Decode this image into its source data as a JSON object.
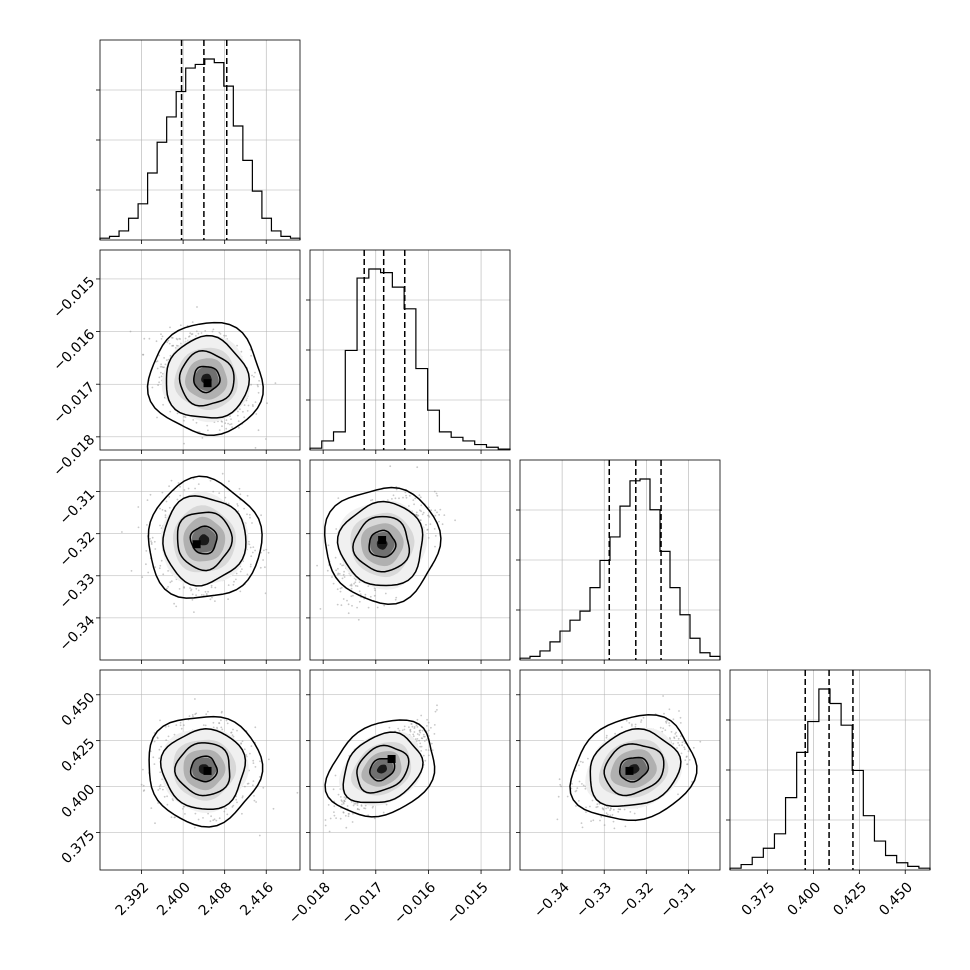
{
  "chart_data": {
    "type": "corner",
    "title": "",
    "parameters": [
      {
        "range": [
          2.384,
          2.4225
        ],
        "ticks": [
          2.392,
          2.4,
          2.408,
          2.416
        ],
        "tick_labels": [
          "2.392",
          "2.400",
          "2.408",
          "2.416"
        ],
        "quantiles": [
          2.3997,
          2.404,
          2.4084
        ],
        "median": 2.4042,
        "hist_heights": [
          0.01,
          0.02,
          0.05,
          0.12,
          0.2,
          0.37,
          0.54,
          0.68,
          0.82,
          0.95,
          0.97,
          1.0,
          0.98,
          0.85,
          0.63,
          0.44,
          0.27,
          0.12,
          0.05,
          0.02,
          0.01
        ]
      },
      {
        "range": [
          -0.01825,
          -0.01445
        ],
        "ticks": [
          -0.018,
          -0.017,
          -0.016,
          -0.015
        ],
        "tick_labels": [
          "−0.018",
          "−0.017",
          "−0.016",
          "−0.015"
        ],
        "quantiles": [
          -0.01722,
          -0.01685,
          -0.01645
        ],
        "median": -0.0169,
        "hist_heights": [
          0.01,
          0.05,
          0.1,
          0.55,
          0.95,
          1.0,
          0.98,
          0.9,
          0.78,
          0.45,
          0.22,
          0.1,
          0.07,
          0.05,
          0.03,
          0.015,
          0.005
        ]
      },
      {
        "range": [
          -0.35,
          -0.3025
        ],
        "ticks": [
          -0.34,
          -0.33,
          -0.32,
          -0.31
        ],
        "tick_labels": [
          "−0.34",
          "−0.33",
          "−0.32",
          "−0.31"
        ],
        "quantiles": [
          -0.3288,
          -0.3225,
          -0.3165
        ],
        "median": -0.3225,
        "hist_heights": [
          0.01,
          0.02,
          0.05,
          0.1,
          0.16,
          0.22,
          0.27,
          0.4,
          0.55,
          0.68,
          0.85,
          0.99,
          1.0,
          0.83,
          0.6,
          0.4,
          0.25,
          0.12,
          0.04,
          0.02
        ]
      },
      {
        "range": [
          0.3545,
          0.4635
        ],
        "ticks": [
          0.375,
          0.4,
          0.425,
          0.45
        ],
        "tick_labels": [
          "0.375",
          "0.400",
          "0.425",
          "0.450"
        ],
        "quantiles": [
          0.3955,
          0.4085,
          0.4215
        ],
        "median": 0.4085,
        "hist_heights": [
          0.01,
          0.03,
          0.07,
          0.12,
          0.2,
          0.4,
          0.65,
          0.82,
          1.0,
          0.92,
          0.8,
          0.55,
          0.3,
          0.16,
          0.08,
          0.04,
          0.02,
          0.01
        ]
      }
    ],
    "pairs": [
      {
        "x": 0,
        "y": 1,
        "corr": -0.3,
        "sx": 0.0042,
        "sy": 0.00042,
        "center": [
          2.4045,
          -0.0169
        ],
        "peak": [
          2.4047,
          -0.01698
        ]
      },
      {
        "x": 0,
        "y": 2,
        "corr": -0.05,
        "sx": 0.0042,
        "sy": 0.0055,
        "center": [
          2.404,
          -0.3215
        ],
        "peak": [
          2.4026,
          -0.3225
        ]
      },
      {
        "x": 1,
        "y": 2,
        "corr": 0.55,
        "sx": 0.00042,
        "sy": 0.0058,
        "center": [
          -0.01688,
          -0.3225
        ],
        "peak": [
          -0.01688,
          -0.3215
        ]
      },
      {
        "x": 0,
        "y": 3,
        "corr": -0.05,
        "sx": 0.0042,
        "sy": 0.0115,
        "center": [
          2.404,
          0.4095
        ],
        "peak": [
          2.4047,
          0.4085
        ]
      },
      {
        "x": 1,
        "y": 3,
        "corr": 0.78,
        "sx": 0.00042,
        "sy": 0.0115,
        "center": [
          -0.01688,
          0.4095
        ],
        "peak": [
          -0.0167,
          0.415
        ]
      },
      {
        "x": 2,
        "y": 3,
        "corr": 0.5,
        "sx": 0.0058,
        "sy": 0.0115,
        "center": [
          -0.323,
          0.4095
        ],
        "peak": [
          -0.324,
          0.4085
        ]
      }
    ],
    "contour_levels": [
      0.12,
      0.4,
      0.7,
      0.9
    ],
    "grid": true,
    "colors": {
      "hist": "#000000",
      "quantile_line": "#000000",
      "contour": "#000000",
      "scatter": "#9a9a9a",
      "grid": "#b0b0b0"
    }
  }
}
